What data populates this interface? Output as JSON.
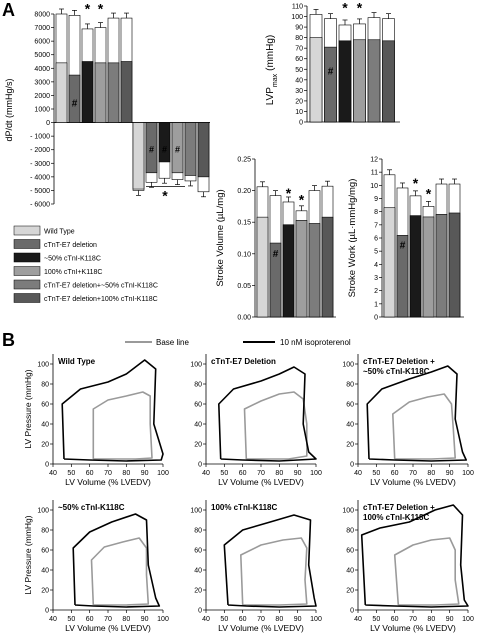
{
  "panel_labels": {
    "a": "A",
    "b": "B"
  },
  "colors": {
    "wild_type": "#d6d6d6",
    "e7_deletion": "#6a6a6a",
    "pct50": "#1a1a1a",
    "pct100": "#9e9e9e",
    "e7_pct50": "#7c7c7c",
    "e7_pct100": "#585858",
    "baseline_line": "#9a9a9a",
    "iso_line": "#000000",
    "iso_bar": "#ffffff"
  },
  "legend_a": [
    "Wild Type",
    "cTnT-E7 deletion",
    "~50% cTnI-K118C",
    "100% cTnI+K118C",
    "cTnT-E7 deletion+~50% cTnI-K118C",
    "cTnT-E7 deletion+100% cTnI-K118C"
  ],
  "legend_b": {
    "baseline": "Base line",
    "iso": "10 nM isoproterenol"
  },
  "chart_data": [
    {
      "type": "bar",
      "id": "dpdt",
      "ylabel": "dP/dt (mmHg/s)",
      "ylim": [
        -6000,
        8000
      ],
      "ticks": [
        8000,
        7000,
        6000,
        5000,
        4000,
        3000,
        2000,
        1000,
        0,
        -1000,
        -2000,
        -3000,
        -4000,
        -5000,
        -6000
      ],
      "tick_labels": [
        "8000",
        "7000",
        "6000",
        "5000",
        "4000",
        "3000",
        "2000",
        "1000",
        "0",
        "- 1000",
        "- 2000",
        "- 3000",
        "- 4000",
        "- 5000",
        "- 6000"
      ],
      "series": [
        {
          "name": "Base line",
          "positive": [
            4400,
            3500,
            4500,
            4400,
            4400,
            4500
          ],
          "negative": [
            -4900,
            -3700,
            -2900,
            -3700,
            -3900,
            -4000
          ]
        },
        {
          "name": "10 nM isoproterenol",
          "positive": [
            8000,
            7900,
            6900,
            7000,
            7700,
            7700
          ],
          "negative": [
            -5000,
            -4400,
            -4100,
            -4200,
            -4300,
            -5100
          ]
        }
      ],
      "markers": [
        "#",
        "#",
        "#",
        "#",
        "*",
        "*"
      ]
    },
    {
      "type": "bar",
      "id": "lvp",
      "ylabel": "LVPmax (mmHg)",
      "ylabel_main": "LVP",
      "ylabel_sub": "max",
      "ylabel_unit": "(mmHg)",
      "ylim": [
        0,
        110
      ],
      "ticks": [
        0,
        10,
        20,
        30,
        40,
        50,
        60,
        70,
        80,
        90,
        100,
        110
      ],
      "tick_labels": [
        "0",
        "10",
        "20",
        "30",
        "40",
        "50",
        "60",
        "70",
        "80",
        "90",
        "100",
        "110"
      ],
      "series": [
        {
          "name": "Base line",
          "values": [
            80,
            71,
            77,
            78,
            78,
            77
          ]
        },
        {
          "name": "10 nM isoproterenol",
          "values": [
            102,
            98,
            92,
            93,
            99,
            98
          ]
        }
      ],
      "markers": [
        "#",
        "*",
        "*"
      ]
    },
    {
      "type": "bar",
      "id": "sv",
      "ylabel": "Stroke Volume (µL/mg)",
      "ylim": [
        0,
        0.25
      ],
      "ticks": [
        0,
        0.05,
        0.1,
        0.15,
        0.2,
        0.25
      ],
      "tick_labels": [
        "0.00",
        "0.05",
        "0.10",
        "0.15",
        "0.20",
        "0.25"
      ],
      "series": [
        {
          "name": "Base line",
          "values": [
            0.158,
            0.117,
            0.146,
            0.153,
            0.148,
            0.158
          ]
        },
        {
          "name": "10 nM isoproterenol",
          "values": [
            0.206,
            0.192,
            0.182,
            0.168,
            0.2,
            0.207
          ]
        }
      ],
      "markers": [
        "#",
        "*",
        "*"
      ]
    },
    {
      "type": "bar",
      "id": "sw",
      "ylabel": "Stroke Work (µL·mmHg/mg)",
      "ylim": [
        0,
        12
      ],
      "ticks": [
        0,
        1,
        2,
        3,
        4,
        5,
        6,
        7,
        8,
        9,
        10,
        11,
        12
      ],
      "tick_labels": [
        "0",
        "1",
        "2",
        "3",
        "4",
        "5",
        "6",
        "7",
        "8",
        "9",
        "10",
        "11",
        "12"
      ],
      "series": [
        {
          "name": "Base line",
          "values": [
            8.3,
            6.2,
            7.7,
            7.6,
            7.8,
            7.9
          ]
        },
        {
          "name": "10 nM isoproterenol",
          "values": [
            10.8,
            9.8,
            9.2,
            8.4,
            10.1,
            10.1
          ]
        }
      ],
      "markers": [
        "#",
        "*",
        "*"
      ]
    },
    {
      "type": "line",
      "group": "pv_loops",
      "xlabel": "LV Volume (% LVEDV)",
      "ylabel": "LV Pressure (mmHg)",
      "xlim": [
        40,
        100
      ],
      "ylim": [
        0,
        110
      ],
      "xticks": [
        40,
        50,
        60,
        70,
        80,
        90,
        100
      ],
      "yticks": [
        0,
        20,
        40,
        60,
        80,
        100
      ],
      "panels": [
        {
          "title_lines": [
            "Wild Type"
          ],
          "baseline": [
            [
              62,
              5
            ],
            [
              62,
              55
            ],
            [
              70,
              64
            ],
            [
              80,
              68
            ],
            [
              89,
              72
            ],
            [
              93,
              68
            ],
            [
              93,
              40
            ],
            [
              94,
              6
            ],
            [
              85,
              5
            ],
            [
              70,
              5
            ],
            [
              62,
              5
            ]
          ],
          "iso": [
            [
              46,
              5
            ],
            [
              45,
              60
            ],
            [
              55,
              75
            ],
            [
              70,
              82
            ],
            [
              80,
              90
            ],
            [
              90,
              104
            ],
            [
              96,
              95
            ],
            [
              95,
              40
            ],
            [
              100,
              10
            ],
            [
              99,
              4
            ],
            [
              80,
              3
            ],
            [
              60,
              4
            ],
            [
              46,
              5
            ]
          ]
        },
        {
          "title_lines": [
            "cTnT-E7 Deletion"
          ],
          "baseline": [
            [
              62,
              5
            ],
            [
              61,
              55
            ],
            [
              70,
              63
            ],
            [
              80,
              70
            ],
            [
              88,
              72
            ],
            [
              93,
              65
            ],
            [
              95,
              40
            ],
            [
              95,
              8
            ],
            [
              85,
              5
            ],
            [
              70,
              5
            ],
            [
              62,
              5
            ]
          ],
          "iso": [
            [
              48,
              5
            ],
            [
              47,
              60
            ],
            [
              55,
              75
            ],
            [
              70,
              83
            ],
            [
              80,
              90
            ],
            [
              88,
              97
            ],
            [
              94,
              90
            ],
            [
              93,
              40
            ],
            [
              96,
              12
            ],
            [
              100,
              5
            ],
            [
              80,
              3
            ],
            [
              60,
              4
            ],
            [
              48,
              5
            ]
          ]
        },
        {
          "title_lines": [
            "cTnT-E7 Deletion +",
            "~50% cTnI-K118C"
          ],
          "baseline": [
            [
              60,
              5
            ],
            [
              59,
              50
            ],
            [
              68,
              62
            ],
            [
              78,
              67
            ],
            [
              87,
              70
            ],
            [
              91,
              60
            ],
            [
              92,
              35
            ],
            [
              93,
              6
            ],
            [
              80,
              5
            ],
            [
              68,
              5
            ],
            [
              60,
              5
            ]
          ],
          "iso": [
            [
              46,
              5
            ],
            [
              45,
              60
            ],
            [
              53,
              75
            ],
            [
              68,
              85
            ],
            [
              80,
              92
            ],
            [
              89,
              98
            ],
            [
              94,
              90
            ],
            [
              93,
              45
            ],
            [
              97,
              12
            ],
            [
              99,
              4
            ],
            [
              80,
              3
            ],
            [
              60,
              4
            ],
            [
              46,
              5
            ]
          ]
        },
        {
          "title_lines": [
            "~50% cTnI-K118C"
          ],
          "baseline": [
            [
              62,
              5
            ],
            [
              61,
              50
            ],
            [
              68,
              63
            ],
            [
              78,
              68
            ],
            [
              87,
              72
            ],
            [
              91,
              62
            ],
            [
              91,
              35
            ],
            [
              92,
              6
            ],
            [
              80,
              5
            ],
            [
              68,
              5
            ],
            [
              62,
              5
            ]
          ],
          "iso": [
            [
              52,
              5
            ],
            [
              51,
              62
            ],
            [
              60,
              78
            ],
            [
              72,
              88
            ],
            [
              85,
              96
            ],
            [
              91,
              90
            ],
            [
              92,
              45
            ],
            [
              96,
              12
            ],
            [
              98,
              4
            ],
            [
              80,
              3
            ],
            [
              62,
              4
            ],
            [
              52,
              5
            ]
          ]
        },
        {
          "title_lines": [
            "100% cTnI-K118C"
          ],
          "baseline": [
            [
              60,
              5
            ],
            [
              59,
              55
            ],
            [
              70,
              65
            ],
            [
              82,
              70
            ],
            [
              92,
              72
            ],
            [
              95,
              62
            ],
            [
              94,
              30
            ],
            [
              95,
              6
            ],
            [
              80,
              5
            ],
            [
              65,
              5
            ],
            [
              60,
              5
            ]
          ],
          "iso": [
            [
              52,
              5
            ],
            [
              50,
              65
            ],
            [
              60,
              80
            ],
            [
              75,
              88
            ],
            [
              88,
              95
            ],
            [
              97,
              90
            ],
            [
              96,
              45
            ],
            [
              99,
              12
            ],
            [
              100,
              4
            ],
            [
              80,
              3
            ],
            [
              62,
              4
            ],
            [
              52,
              5
            ]
          ]
        },
        {
          "title_lines": [
            "cTnT-E7 Deletion +",
            "100% cTnI-K118C"
          ],
          "baseline": [
            [
              62,
              5
            ],
            [
              60,
              55
            ],
            [
              70,
              65
            ],
            [
              80,
              70
            ],
            [
              90,
              72
            ],
            [
              93,
              60
            ],
            [
              93,
              30
            ],
            [
              95,
              6
            ],
            [
              82,
              5
            ],
            [
              68,
              5
            ],
            [
              62,
              5
            ]
          ],
          "iso": [
            [
              44,
              5
            ],
            [
              42,
              75
            ],
            [
              52,
              82
            ],
            [
              68,
              88
            ],
            [
              82,
              100
            ],
            [
              92,
              105
            ],
            [
              97,
              95
            ],
            [
              96,
              45
            ],
            [
              98,
              10
            ],
            [
              100,
              4
            ],
            [
              80,
              3
            ],
            [
              60,
              4
            ],
            [
              44,
              5
            ]
          ]
        }
      ]
    }
  ]
}
